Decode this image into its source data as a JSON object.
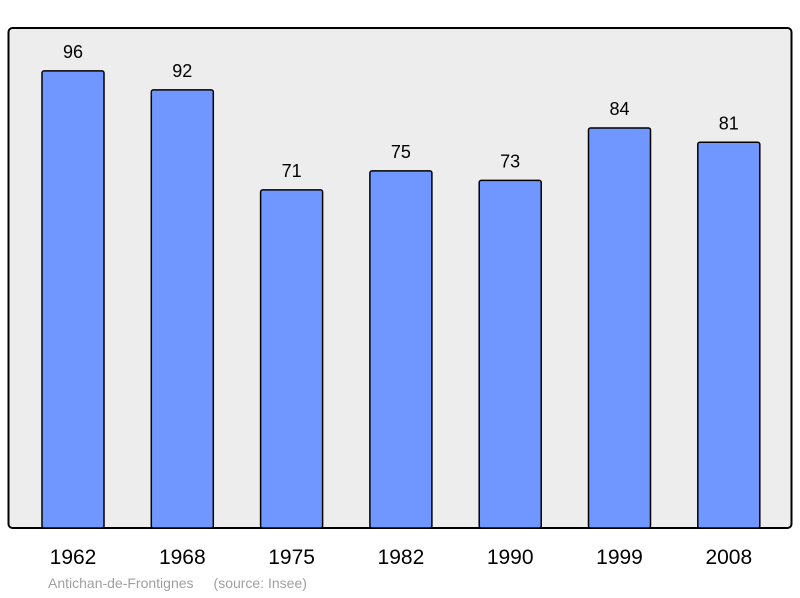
{
  "chart_data": {
    "type": "bar",
    "categories": [
      "1962",
      "1968",
      "1975",
      "1982",
      "1990",
      "1999",
      "2008"
    ],
    "values": [
      96,
      92,
      71,
      75,
      73,
      84,
      81
    ],
    "ylim": [
      0,
      105
    ],
    "grid": false,
    "colors": {
      "bar": "#7097ff",
      "bar_stroke": "#000000",
      "plot_background": "#ededed",
      "frame": "#000000"
    }
  },
  "caption": {
    "place": "Antichan-de-Frontignes",
    "source": "(source: Insee)"
  }
}
